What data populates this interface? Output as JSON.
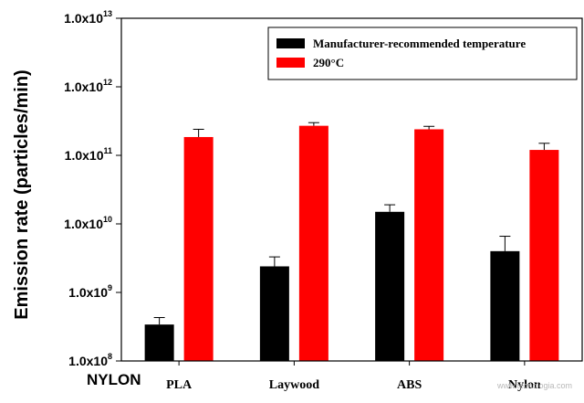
{
  "chart_data": {
    "type": "bar",
    "title": "",
    "xlabel": "",
    "ylabel": "Emission rate (particles/min)",
    "yscale": "log",
    "ylim": [
      100000000,
      10000000000000
    ],
    "yticks": [
      {
        "mantissa": "1.0x10",
        "exp": "8"
      },
      {
        "mantissa": "1.0x10",
        "exp": "9"
      },
      {
        "mantissa": "1.0x10",
        "exp": "10"
      },
      {
        "mantissa": "1.0x10",
        "exp": "11"
      },
      {
        "mantissa": "1.0x10",
        "exp": "12"
      },
      {
        "mantissa": "1.0x10",
        "exp": "13"
      }
    ],
    "categories": [
      "PLA",
      "Laywood",
      "ABS",
      "Nylon"
    ],
    "series": [
      {
        "name": "Manufacturer-recommended temperature",
        "color": "#000000",
        "values": [
          340000000,
          2400000000,
          15000000000,
          4000000000
        ],
        "error_upper": [
          430000000,
          3300000000,
          19000000000,
          6600000000
        ]
      },
      {
        "name": "290°C",
        "color": "#ff0000",
        "values": [
          185000000000,
          270000000000,
          240000000000,
          120000000000
        ],
        "error_upper": [
          240000000000,
          300000000000,
          265000000000,
          150000000000
        ]
      }
    ],
    "grid": false,
    "legend_position": "top-right"
  },
  "corner_label": "NYLON",
  "watermark": "www.tecnologia.com"
}
